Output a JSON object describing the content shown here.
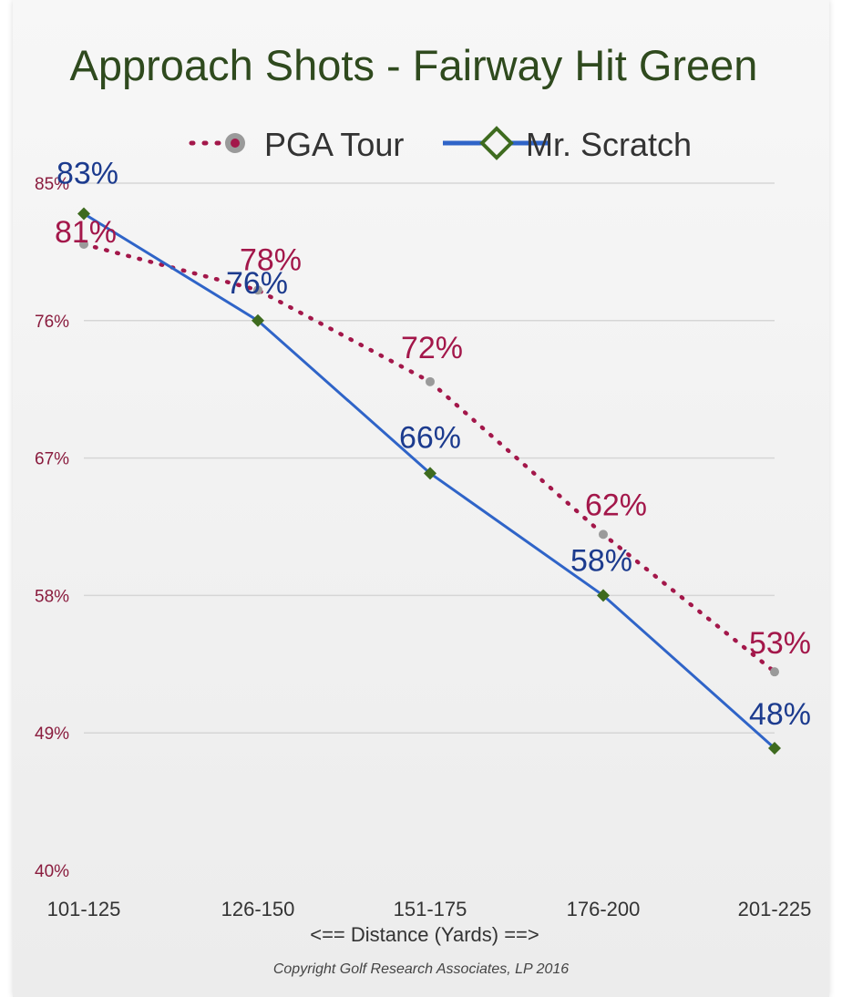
{
  "chart_data": {
    "type": "line",
    "title": "Approach Shots - Fairway Hit Green",
    "categories": [
      "101-125",
      "126-150",
      "151-175",
      "176-200",
      "201-225"
    ],
    "series": [
      {
        "name": "PGA Tour",
        "values": [
          81,
          78,
          72,
          62,
          53
        ],
        "labels": [
          "81%",
          "78%",
          "72%",
          "62%",
          "53%"
        ],
        "color": "#a3174a",
        "marker_color": "#9a9a9a",
        "style": "dotted"
      },
      {
        "name": "Mr. Scratch",
        "values": [
          83,
          76,
          66,
          58,
          48
        ],
        "labels": [
          "83%",
          "76%",
          "66%",
          "58%",
          "48%"
        ],
        "color": "#2f64c8",
        "marker_color": "#3e6b1f",
        "style": "solid"
      }
    ],
    "xlabel": "<== Distance (Yards) ==>",
    "ylabel": "",
    "ylim": [
      40,
      85
    ],
    "yticks": [
      40,
      49,
      58,
      67,
      76,
      85
    ],
    "ytick_labels": [
      "40%",
      "49%",
      "58%",
      "67%",
      "76%",
      "85%"
    ],
    "grid": true,
    "legend_position": "top"
  },
  "copyright": "Copyright Golf Research Associates, LP 2016"
}
